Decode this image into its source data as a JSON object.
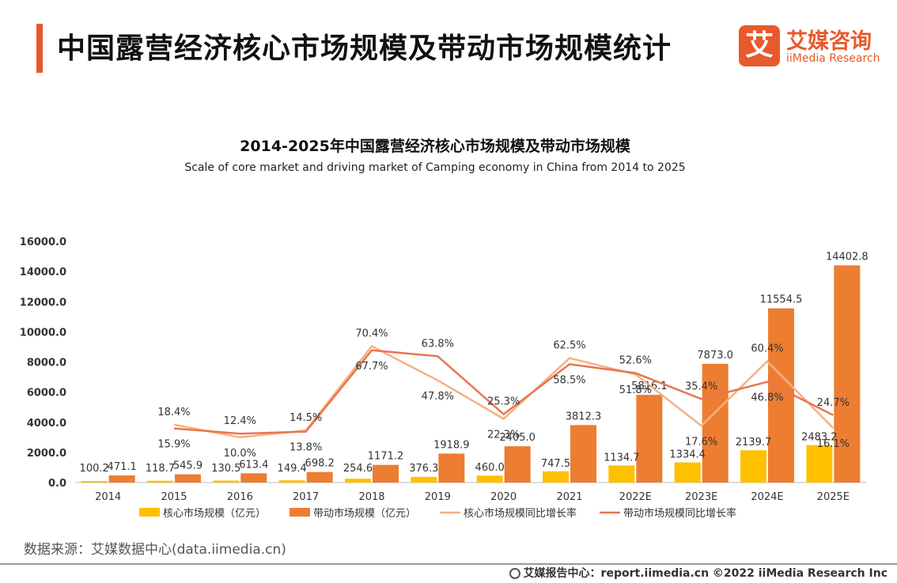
{
  "header": {
    "title": "中国露营经济核心市场规模及带动市场规模统计",
    "logo_mark": "艾",
    "logo_cn": "艾媒咨询",
    "logo_en": "iiMedia Research"
  },
  "chart_data": {
    "type": "bar",
    "title": "2014-2025年中国露营经济核心市场规模及带动市场规模",
    "subtitle": "Scale of core market and driving market of Camping economy in China from 2014 to 2025",
    "categories": [
      "2014",
      "2015",
      "2016",
      "2017",
      "2018",
      "2019",
      "2020",
      "2021",
      "2022E",
      "2023E",
      "2024E",
      "2025E"
    ],
    "ylim": [
      0,
      16000
    ],
    "yticks": [
      "0.0",
      "2000.0",
      "4000.0",
      "6000.0",
      "8000.0",
      "10000.0",
      "12000.0",
      "14000.0",
      "16000.0"
    ],
    "series": [
      {
        "name": "核心市场规模（亿元）",
        "kind": "bar",
        "color": "#ffc000",
        "values": [
          100.2,
          118.7,
          130.5,
          149.4,
          254.6,
          376.3,
          460.0,
          747.5,
          1134.7,
          1334.4,
          2139.7,
          2483.2
        ],
        "labels": [
          "100.2",
          "118.7",
          "130.5",
          "149.4",
          "254.6",
          "376.3",
          "460.0",
          "747.5",
          "1134.7",
          "1334.4",
          "2139.7",
          "2483.2"
        ]
      },
      {
        "name": "带动市场规模（亿元）",
        "kind": "bar",
        "color": "#ed7d31",
        "values": [
          471.1,
          545.9,
          613.4,
          698.2,
          1171.2,
          1918.9,
          2405.0,
          3812.3,
          5816.1,
          7873.0,
          11554.5,
          14402.8
        ],
        "labels": [
          "471.1",
          "545.9",
          "613.4",
          "698.2",
          "1171.2",
          "1918.9",
          "2405.0",
          "3812.3",
          "5816.1",
          "7873.0",
          "11554.5",
          "14402.8"
        ]
      },
      {
        "name": "核心市场规模同比增长率",
        "kind": "line",
        "color": "#f4b183",
        "values": [
          null,
          18.4,
          10.0,
          14.5,
          70.4,
          47.8,
          22.3,
          62.5,
          51.8,
          17.6,
          60.4,
          16.1
        ],
        "labels": [
          "",
          "18.4%",
          "10.0%",
          "14.5%",
          "70.4%",
          "47.8%",
          "22.3%",
          "62.5%",
          "51.8%",
          "17.6%",
          "60.4%",
          "16.1%"
        ]
      },
      {
        "name": "带动市场规模同比增长率",
        "kind": "line",
        "color": "#e8764f",
        "values": [
          null,
          15.9,
          12.4,
          13.8,
          67.7,
          63.8,
          25.3,
          58.5,
          52.6,
          35.4,
          46.8,
          24.7
        ],
        "labels": [
          "",
          "15.9%",
          "12.4%",
          "13.8%",
          "67.7%",
          "63.8%",
          "25.3%",
          "58.5%",
          "52.6%",
          "35.4%",
          "46.8%",
          "24.7%"
        ]
      }
    ],
    "line_axis_range": [
      -20,
      140
    ],
    "legend": "bottom"
  },
  "source": "数据来源：艾媒数据中心(data.iimedia.cn)",
  "footer": {
    "text": "艾媒报告中心：report.iimedia.cn  ©2022  iiMedia Research  Inc"
  },
  "colors": {
    "accent": "#e8592b"
  }
}
